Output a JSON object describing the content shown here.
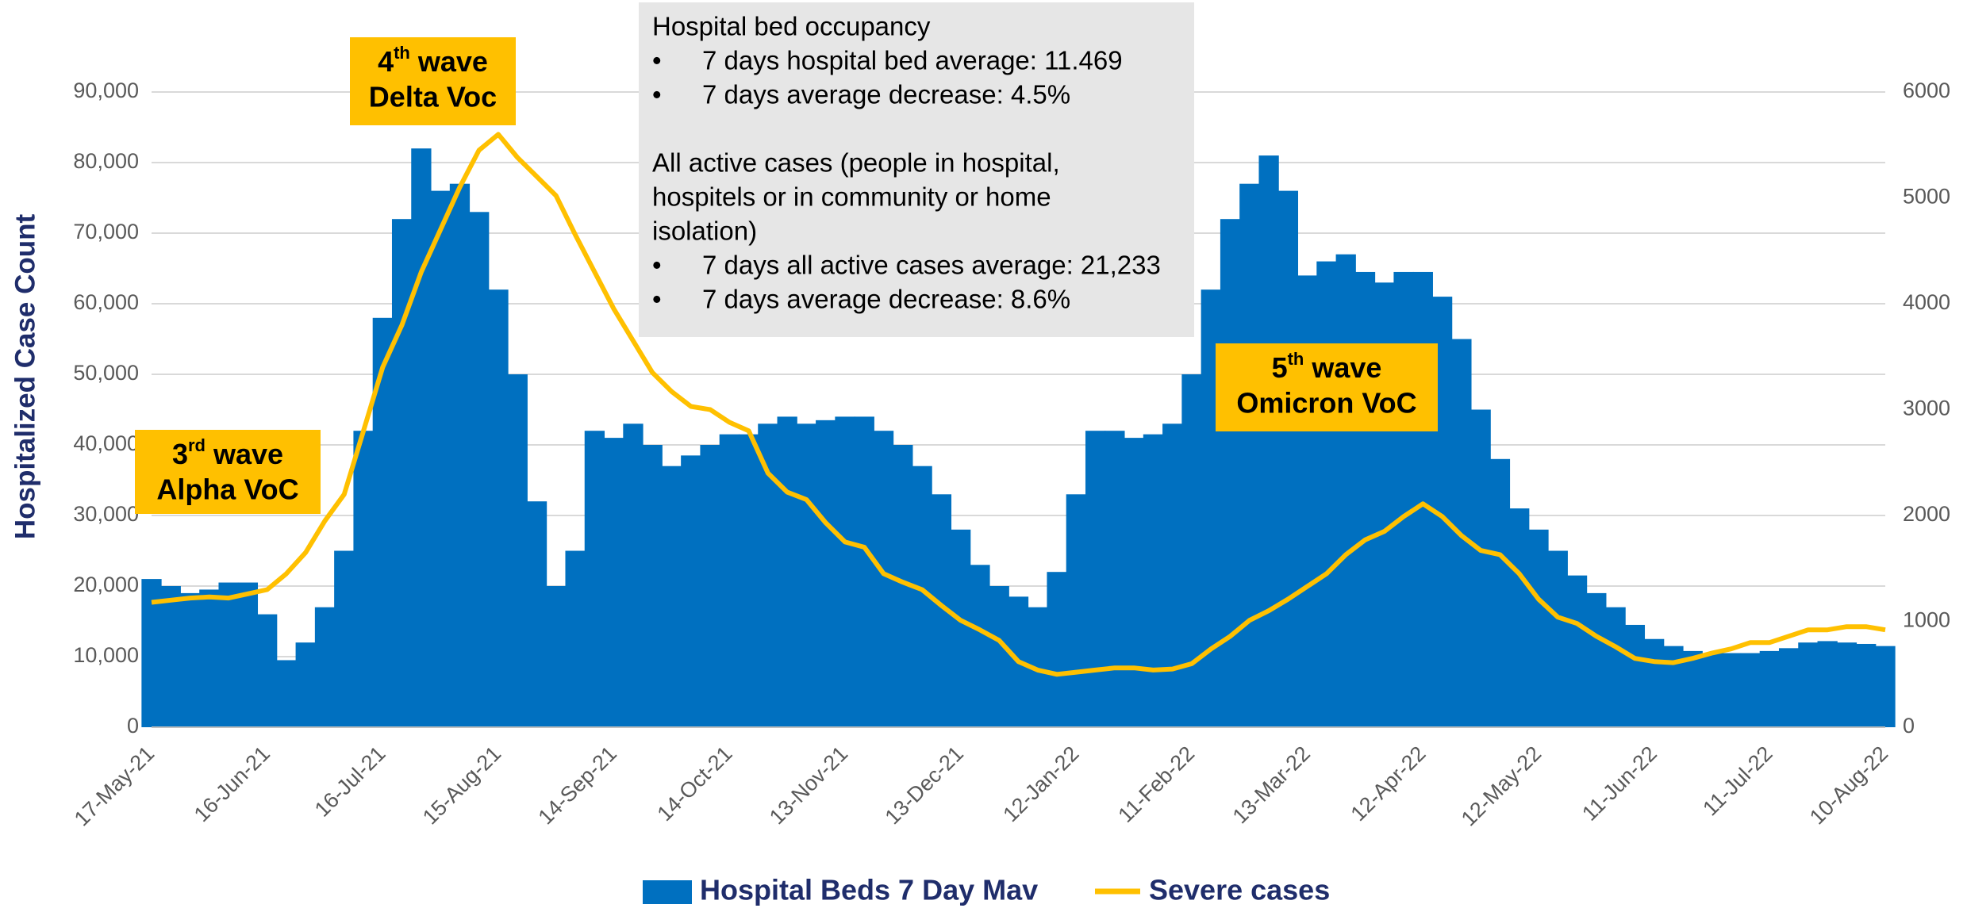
{
  "chart_data": {
    "type": "bar-line",
    "y_label": "Hospitalized Case Count",
    "categories": [
      "17-May-21",
      null,
      null,
      null,
      null,
      null,
      "16-Jun-21",
      null,
      null,
      null,
      null,
      null,
      "16-Jul-21",
      null,
      null,
      null,
      null,
      null,
      "15-Aug-21",
      null,
      null,
      null,
      null,
      null,
      "14-Sep-21",
      null,
      null,
      null,
      null,
      null,
      "14-Oct-21",
      null,
      null,
      null,
      null,
      null,
      "13-Nov-21",
      null,
      null,
      null,
      null,
      null,
      "13-Dec-21",
      null,
      null,
      null,
      null,
      null,
      "12-Jan-22",
      null,
      null,
      null,
      null,
      null,
      "11-Feb-22",
      null,
      null,
      null,
      null,
      null,
      "13-Mar-22",
      null,
      null,
      null,
      null,
      null,
      "12-Apr-22",
      null,
      null,
      null,
      null,
      null,
      "12-May-22",
      null,
      null,
      null,
      null,
      null,
      "11-Jun-22",
      null,
      null,
      null,
      null,
      null,
      "11-Jul-22",
      null,
      null,
      null,
      null,
      null,
      "10-Aug-22"
    ],
    "series": [
      {
        "name": "Hospital Beds 7 Day Mav",
        "color": "#0070c0",
        "axis": "y",
        "values": [
          21000,
          20000,
          19000,
          19500,
          20500,
          20500,
          16000,
          9500,
          12000,
          17000,
          25000,
          42000,
          58000,
          72000,
          82000,
          76000,
          77000,
          73000,
          62000,
          50000,
          32000,
          20000,
          25000,
          42000,
          41000,
          43000,
          40000,
          37000,
          38500,
          40000,
          41500,
          41500,
          43000,
          44000,
          43000,
          43500,
          44000,
          44000,
          42000,
          40000,
          37000,
          33000,
          28000,
          23000,
          20000,
          18500,
          17000,
          22000,
          33000,
          42000,
          42000,
          41000,
          41500,
          43000,
          50000,
          62000,
          72000,
          77000,
          81000,
          76000,
          64000,
          66000,
          67000,
          64500,
          63000,
          64500,
          64500,
          61000,
          55000,
          45000,
          38000,
          31000,
          28000,
          25000,
          21500,
          19000,
          17000,
          14500,
          12500,
          11500,
          10800,
          10500,
          10500,
          10500,
          10800,
          11200,
          12000,
          12200,
          12000,
          11800,
          11500
        ]
      },
      {
        "name": "Severe cases",
        "color": "#ffc000",
        "axis": "y2",
        "values": [
          1180,
          1200,
          1220,
          1230,
          1220,
          1260,
          1300,
          1450,
          1650,
          1950,
          2200,
          2800,
          3400,
          3800,
          4300,
          4700,
          5100,
          5450,
          5600,
          5380,
          5200,
          5020,
          4650,
          4300,
          3950,
          3650,
          3350,
          3170,
          3030,
          3000,
          2880,
          2800,
          2400,
          2220,
          2150,
          1930,
          1750,
          1700,
          1450,
          1370,
          1300,
          1150,
          1010,
          920,
          820,
          620,
          540,
          500,
          520,
          540,
          560,
          560,
          540,
          550,
          600,
          740,
          860,
          1010,
          1100,
          1210,
          1330,
          1450,
          1630,
          1770,
          1850,
          1990,
          2110,
          1990,
          1810,
          1670,
          1630,
          1450,
          1210,
          1040,
          980,
          860,
          760,
          650,
          620,
          610,
          650,
          700,
          740,
          800,
          800,
          860,
          920,
          920,
          950,
          950,
          920
        ]
      }
    ],
    "ylim": [
      0,
      90000
    ],
    "yticks": [
      {
        "value": 0,
        "label": "0"
      },
      {
        "value": 10000,
        "label": "10,000"
      },
      {
        "value": 20000,
        "label": "20,000"
      },
      {
        "value": 30000,
        "label": "30,000"
      },
      {
        "value": 40000,
        "label": "40,000"
      },
      {
        "value": 50000,
        "label": "50,000"
      },
      {
        "value": 60000,
        "label": "60,000"
      },
      {
        "value": 70000,
        "label": "70,000"
      },
      {
        "value": 80000,
        "label": "80,000"
      },
      {
        "value": 90000,
        "label": "90,000"
      }
    ],
    "y2lim": [
      0,
      6000
    ],
    "y2ticks": [
      0,
      1000,
      2000,
      3000,
      4000,
      5000,
      6000
    ],
    "grid": true,
    "legend": "bottom",
    "annotations": [
      {
        "number": "3",
        "suffix": "rd",
        "text": "wave",
        "line2": "Alpha VoC"
      },
      {
        "number": "4",
        "suffix": "th",
        "text": "wave",
        "line2": "Delta Voc"
      },
      {
        "number": "5",
        "suffix": "th",
        "text": "wave",
        "line2": "Omicron VoC"
      }
    ],
    "info_box": {
      "heading1": "Hospital bed occupancy",
      "bullets1": [
        "7 days hospital bed average: 11.469",
        "7 days average decrease: 4.5%"
      ],
      "heading2": [
        "All active cases (people in hospital,",
        "hospitels or in community or home",
        "isolation)"
      ],
      "bullets2": [
        "7 days all active cases average: 21,233",
        "7 days average decrease: 8.6%"
      ]
    }
  }
}
